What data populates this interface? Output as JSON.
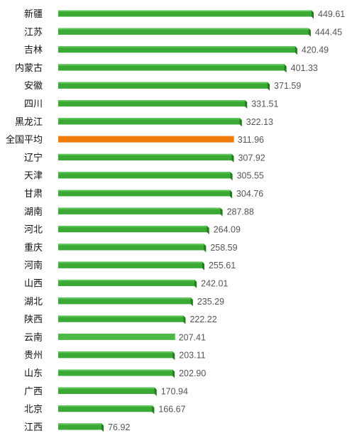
{
  "chart_data": {
    "type": "bar",
    "orientation": "horizontal",
    "categories": [
      "新疆",
      "江苏",
      "吉林",
      "内蒙古",
      "安徽",
      "四川",
      "黑龙江",
      "全国平均",
      "辽宁",
      "天津",
      "甘肃",
      "湖南",
      "河北",
      "重庆",
      "河南",
      "山西",
      "湖北",
      "陕西",
      "云南",
      "贵州",
      "山东",
      "广西",
      "北京",
      "江西"
    ],
    "values": [
      449.61,
      444.45,
      420.49,
      401.33,
      371.59,
      331.51,
      322.13,
      311.96,
      307.92,
      305.55,
      304.76,
      287.88,
      264.09,
      258.59,
      255.61,
      242.01,
      235.29,
      222.22,
      207.41,
      203.11,
      202.9,
      170.94,
      166.67,
      76.92
    ],
    "value_labels": [
      "449.61",
      "444.45",
      "420.49",
      "401.33",
      "371.59",
      "331.51",
      "322.13",
      "311.96",
      "307.92",
      "305.55",
      "304.76",
      "287.88",
      "264.09",
      "258.59",
      "255.61",
      "242.01",
      "235.29",
      "222.22",
      "207.41",
      "203.11",
      "202.90",
      "170.94",
      "166.67",
      "76.92"
    ],
    "highlight_category": "全国平均",
    "xlim": [
      0,
      449.61
    ],
    "grid": false,
    "legend": "none",
    "title": "",
    "xlabel": "",
    "ylabel": ""
  },
  "colors": {
    "bar": "#3aaa35",
    "bar_top": "#5cc558",
    "bar_side": "#237a20",
    "highlight": "#f07d0b",
    "flat_bar": "#4cb848"
  },
  "flat_categories": [
    "云南"
  ]
}
